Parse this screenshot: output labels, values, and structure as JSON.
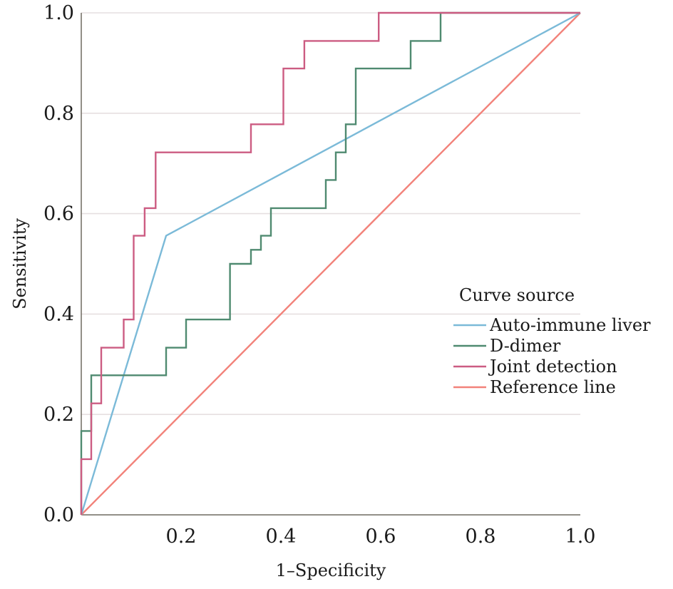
{
  "chart_data": {
    "type": "line",
    "title": "",
    "xlabel": "1–Specificity",
    "ylabel": "Sensitivity",
    "xlim": [
      0,
      1
    ],
    "ylim": [
      0,
      1
    ],
    "x_ticks": [
      "0.2",
      "0.4",
      "0.6",
      "0.8",
      "1.0"
    ],
    "y_ticks": [
      "0.0",
      "0.2",
      "0.4",
      "0.6",
      "0.8",
      "1.0"
    ],
    "grid": "horizontal",
    "legend": {
      "title": "Curve source",
      "position": "right"
    },
    "series": [
      {
        "name": "Auto-immune liver",
        "color": "#7bbad8",
        "step": false,
        "points": [
          [
            0,
            0
          ],
          [
            0.17,
            0.556
          ],
          [
            1,
            1
          ]
        ]
      },
      {
        "name": "D-dimer",
        "color": "#4f8a70",
        "step": true,
        "points": [
          [
            0,
            0
          ],
          [
            0,
            0.167
          ],
          [
            0.02,
            0.167
          ],
          [
            0.02,
            0.278
          ],
          [
            0.17,
            0.278
          ],
          [
            0.17,
            0.333
          ],
          [
            0.21,
            0.333
          ],
          [
            0.21,
            0.389
          ],
          [
            0.298,
            0.389
          ],
          [
            0.298,
            0.5
          ],
          [
            0.34,
            0.5
          ],
          [
            0.34,
            0.528
          ],
          [
            0.36,
            0.528
          ],
          [
            0.36,
            0.556
          ],
          [
            0.38,
            0.556
          ],
          [
            0.38,
            0.611
          ],
          [
            0.49,
            0.611
          ],
          [
            0.49,
            0.667
          ],
          [
            0.51,
            0.667
          ],
          [
            0.51,
            0.722
          ],
          [
            0.53,
            0.722
          ],
          [
            0.53,
            0.778
          ],
          [
            0.55,
            0.778
          ],
          [
            0.55,
            0.889
          ],
          [
            0.66,
            0.889
          ],
          [
            0.66,
            0.944
          ],
          [
            0.72,
            0.944
          ],
          [
            0.72,
            1.0
          ],
          [
            1,
            1
          ]
        ]
      },
      {
        "name": "Joint detection",
        "color": "#cc5c82",
        "step": true,
        "points": [
          [
            0,
            0
          ],
          [
            0,
            0.111
          ],
          [
            0.02,
            0.111
          ],
          [
            0.02,
            0.222
          ],
          [
            0.04,
            0.222
          ],
          [
            0.04,
            0.333
          ],
          [
            0.085,
            0.333
          ],
          [
            0.085,
            0.389
          ],
          [
            0.105,
            0.389
          ],
          [
            0.105,
            0.556
          ],
          [
            0.127,
            0.556
          ],
          [
            0.127,
            0.611
          ],
          [
            0.149,
            0.611
          ],
          [
            0.149,
            0.722
          ],
          [
            0.34,
            0.722
          ],
          [
            0.34,
            0.778
          ],
          [
            0.405,
            0.778
          ],
          [
            0.405,
            0.889
          ],
          [
            0.447,
            0.889
          ],
          [
            0.447,
            0.944
          ],
          [
            0.596,
            0.944
          ],
          [
            0.596,
            1.0
          ],
          [
            1,
            1
          ]
        ]
      },
      {
        "name": "Reference line",
        "color": "#f2827a",
        "step": false,
        "points": [
          [
            0,
            0
          ],
          [
            1,
            1
          ]
        ]
      }
    ]
  }
}
